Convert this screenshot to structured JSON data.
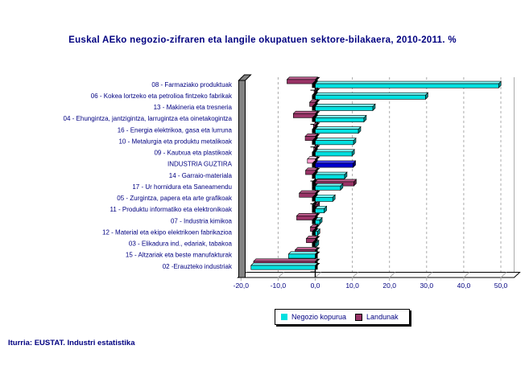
{
  "title": "Euskal AEko negozio-zifraren eta langile okupatuen sektore-bilakaera, 2010-2011. %",
  "footer": "Iturria: EUSTAT. Industri estatistika",
  "legend": {
    "series1_label": "Negozio kopurua",
    "series2_label": "Landunak"
  },
  "colors": {
    "text_navy": "#000080",
    "negozio_front": "#00E0E0",
    "negozio_top": "#7FFFFF",
    "negozio_side": "#008B8B",
    "landunak_front": "#993366",
    "landunak_top": "#C06090",
    "landunak_side": "#5C1F3D",
    "highlight_negozio_front": "#0000CC",
    "highlight_negozio_top": "#4444FF",
    "highlight_negozio_side": "#000066",
    "highlight_landunak_front": "#FF99CC",
    "highlight_landunak_top": "#FFC4DF",
    "highlight_landunak_side": "#CC6699",
    "grid": "#ABABAB",
    "wall": "#828282",
    "axis": "#000000"
  },
  "chart_data": {
    "type": "bar",
    "orientation": "horizontal",
    "title": "Euskal AEko negozio-zifraren eta langile okupatuen sektore-bilakaera, 2010-2011. %",
    "categories": [
      "08 - Farmaziako produktuak",
      "06 - Kokea lortzeko eta petrolioa fintzeko fabrikak",
      "13 - Makineria eta tresneria",
      "04 - Ehungintza, jantzigintza, larrugintza eta oinetakogintza",
      "16 - Energia elektrikoa, gasa eta lurruna",
      "10 - Metalurgia eta produktu metalikoak",
      "09 - Kautxua eta plastikoak",
      "INDUSTRIA GUZTIRA",
      "14 - Garraio-materiala",
      "17 - Ur hornidura eta Saneamendu",
      "05 - Zurgintza, papera eta arte grafikoak",
      "11 - Produktu informatiko eta elektronikoak",
      "07 - Industria kimikoa",
      "12 - Material eta ekipo elektrikoen fabrikazioa",
      "03 - Elikadura ind., edariak, tabakoa",
      "15 - Altzariak eta beste manufakturak",
      "02 -Erauzteko industriak"
    ],
    "series": [
      {
        "name": "Negozio kopurua",
        "values": [
          49.4,
          29.7,
          15.5,
          13.1,
          11.6,
          10.3,
          9.9,
          10.2,
          7.9,
          6.8,
          4.7,
          2.4,
          1.2,
          0.6,
          0.3,
          -7.2,
          -17.3
        ]
      },
      {
        "name": "Landunak",
        "values": [
          -7.6,
          -0.3,
          -1.5,
          -5.9,
          -0.5,
          -2.7,
          -0.4,
          -2.1,
          -2.6,
          10.4,
          -4.3,
          0.5,
          -5.0,
          -1.3,
          -2.4,
          -5.4,
          -16.6
        ]
      }
    ],
    "highlight_category": "INDUSTRIA GUZTIRA",
    "highlight_index": 7,
    "x_tick_labels": [
      "-20,0",
      "-10,0",
      "0,0",
      "10,0",
      "20,0",
      "30,0",
      "40,0",
      "50,0"
    ],
    "x_tick_values": [
      -20,
      -10,
      0,
      10,
      20,
      30,
      40,
      50
    ],
    "xlim": [
      -20.7,
      53.5
    ],
    "grid": "dashed-vertical",
    "legend_position": "bottom"
  }
}
